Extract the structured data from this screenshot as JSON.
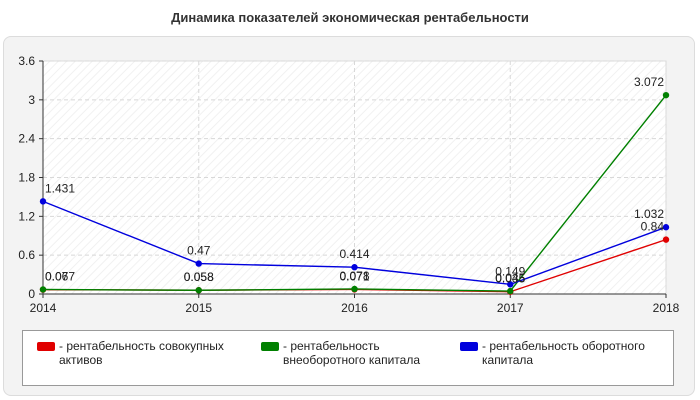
{
  "chart_data": {
    "type": "line",
    "title": "Динамика показателей экономическая рентабельности",
    "x": [
      "2014",
      "2015",
      "2016",
      "2017",
      "2018"
    ],
    "y_ticks": [
      "0",
      "0.6",
      "1.2",
      "1.8",
      "2.4",
      "3",
      "3.6"
    ],
    "ylim": [
      0,
      3.6
    ],
    "grid": true,
    "legend_position": "bottom",
    "series": [
      {
        "name": "- рентабельность совокупных активов",
        "color": "#e00000",
        "values": [
          0.067,
          0.058,
          0.071,
          0.035,
          0.84
        ],
        "labels": [
          "0.067",
          "0.058",
          "0.071",
          "0.035",
          "0.84"
        ]
      },
      {
        "name": "- рентабельность внеоборотного капитала",
        "color": "#008000",
        "values": [
          0.07,
          0.058,
          0.078,
          0.045,
          3.072
        ],
        "labels": [
          "0.07",
          "0.058",
          "0.078",
          "0.045",
          "3.072"
        ]
      },
      {
        "name": "- рентабельность оборотного капитала",
        "color": "#0000dd",
        "values": [
          1.431,
          0.47,
          0.414,
          0.149,
          1.032
        ],
        "labels": [
          "1.431",
          "0.47",
          "0.414",
          "0.149",
          "1.032"
        ]
      }
    ]
  }
}
